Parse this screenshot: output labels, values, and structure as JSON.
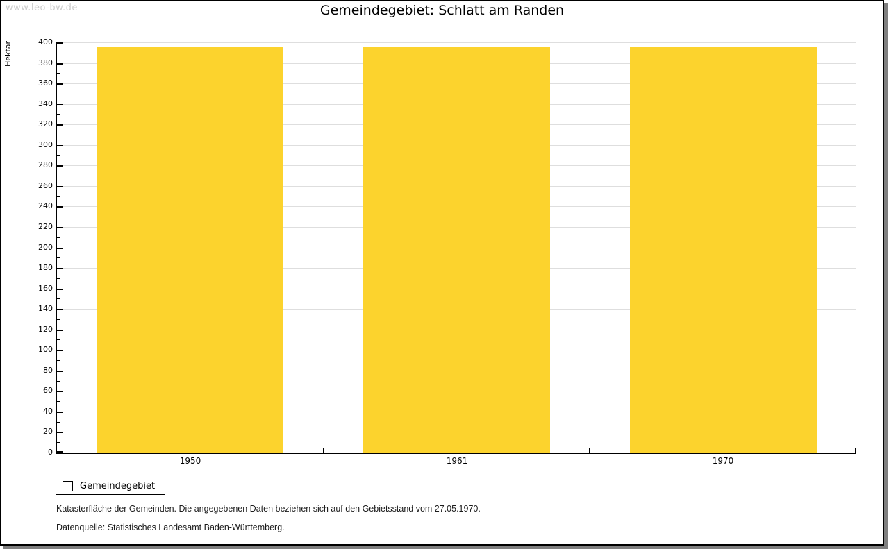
{
  "watermark": "www.leo-bw.de",
  "header": {
    "title": "Gemeindegebiet: Schlatt am Randen"
  },
  "legend": {
    "label": "Gemeindegebiet"
  },
  "notes": {
    "line1": "Katasterfläche der Gemeinden. Die angegebenen Daten beziehen sich auf den Gebietsstand vom 27.05.1970.",
    "line2": "Datenquelle: Statistisches Landesamt Baden-Württemberg."
  },
  "colors": {
    "bar": "#fcd32d",
    "gridline": "#dedede",
    "axis": "#000000",
    "watermark": "#cccccc",
    "frame_shadow": "#7f7f7f"
  },
  "chart_data": {
    "type": "bar",
    "title": "Gemeindegebiet: Schlatt am Randen",
    "categories": [
      "1950",
      "1961",
      "1970"
    ],
    "series": [
      {
        "name": "Gemeindegebiet",
        "values": [
          396,
          396,
          396
        ]
      }
    ],
    "xlabel": "",
    "ylabel": "Hektar",
    "ylim": [
      0,
      400
    ],
    "ytick_step": 20,
    "ytick_minor_step": 10,
    "grid": true,
    "bar_width_fraction": 0.7,
    "legend_position": "bottom-left",
    "bar_color": "#fcd32d"
  }
}
